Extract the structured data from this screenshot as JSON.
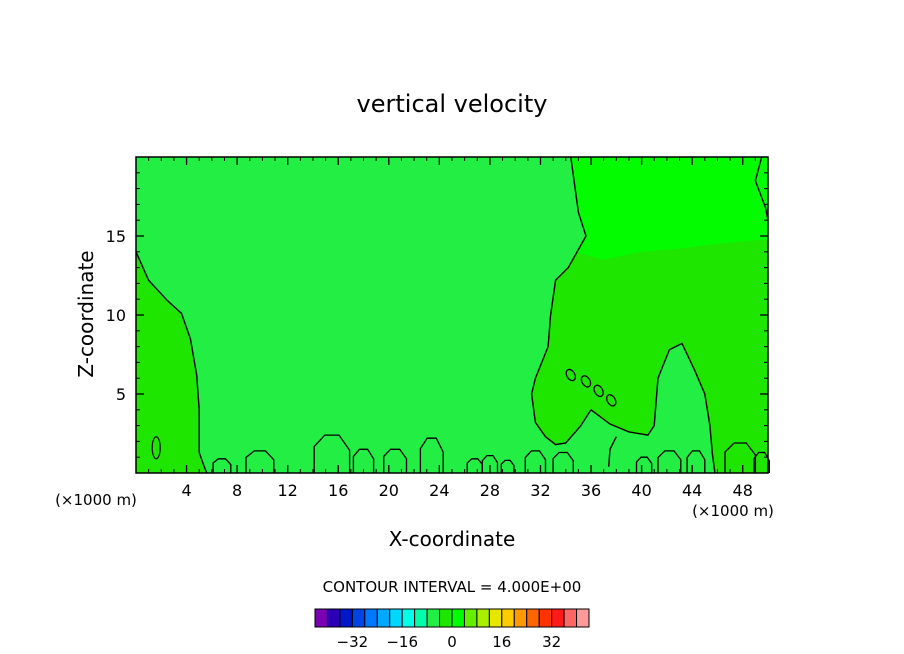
{
  "chart_data": {
    "type": "contour",
    "title": "vertical velocity",
    "xlabel": "X-coordinate",
    "ylabel": "Z-coordinate",
    "x_unit": "(×1000 m)",
    "xlim": [
      0,
      50
    ],
    "ylim": [
      0,
      20
    ],
    "x_ticks": [
      4,
      8,
      12,
      16,
      20,
      24,
      28,
      32,
      36,
      40,
      44,
      48
    ],
    "y_ticks": [
      5,
      10,
      15
    ],
    "grid": false,
    "contour_interval_label": "CONTOUR INTERVAL = 4.000E+00",
    "contour_interval": 4.0,
    "field_regions": [
      {
        "level": "0 to 4",
        "color": "#1ee600",
        "areas": [
          "left column x 0-5",
          "right column x 33-50 above z 2"
        ]
      },
      {
        "level": "-4 to 0",
        "color": "#22ee44",
        "areas": [
          "center band x 5-33"
        ]
      },
      {
        "level": "4 to 8",
        "color": "#00ff00",
        "areas": [
          "upper right x 34-50, z 12-20"
        ]
      }
    ],
    "colorbar": {
      "tick_labels": [
        "-32",
        "-16",
        "0",
        "16",
        "32"
      ],
      "tick_values": [
        -32,
        -16,
        0,
        16,
        32
      ],
      "colors": [
        "#7a00b4",
        "#2b00b4",
        "#0018c8",
        "#0044e6",
        "#0078ff",
        "#00a8ff",
        "#00d8ff",
        "#00ffe6",
        "#00ffaa",
        "#22ee44",
        "#1ee600",
        "#00ff00",
        "#66ee00",
        "#aaee00",
        "#e6e600",
        "#ffcc00",
        "#ff9900",
        "#ff6600",
        "#ff3300",
        "#ff1a1a",
        "#ff6666",
        "#ff9a9a"
      ]
    }
  }
}
